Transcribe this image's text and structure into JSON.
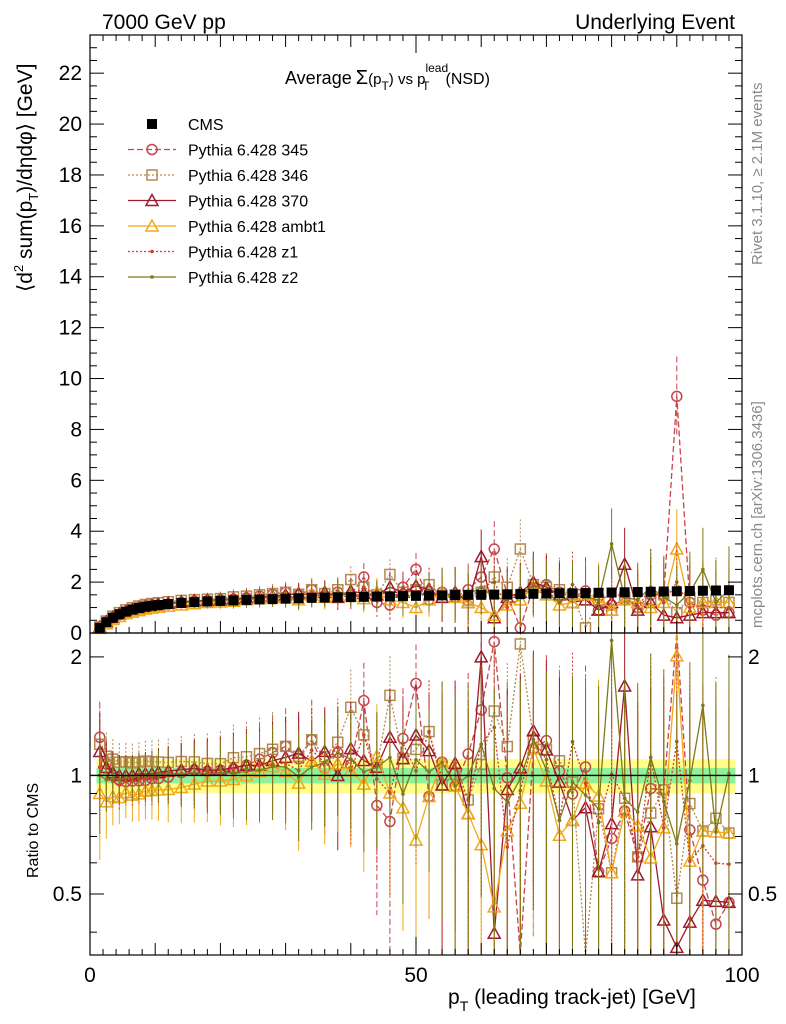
{
  "header": {
    "left": "7000 GeV pp",
    "right": "Underlying Event"
  },
  "side_labels": {
    "rivet": "Rivet 3.1.10, ≥ 2.1M events",
    "mcplots": "mcplots.cern.ch [arXiv:1306.3436]"
  },
  "title": {
    "prefix": "Average",
    "sigma": "Σ",
    "open": "(p",
    "sub1": "T",
    "mid": ") vs p",
    "sup2": "lead",
    "sub2": "T",
    "suffix": "(NSD)"
  },
  "y_axis_main": {
    "pre": "⟨d",
    "sup": "2",
    "mid": " sum(p",
    "sub": "T",
    "post": ")/dηdφ⟩ [GeV]"
  },
  "y_axis_ratio": "Ratio to CMS",
  "x_axis": {
    "pre": "p",
    "sub": "T",
    "post": " (leading track-jet) [GeV]"
  },
  "legend": [
    {
      "label": "CMS",
      "color": "#000000",
      "marker": "filled-square",
      "dash": "none"
    },
    {
      "label": "Pythia 6.428 345",
      "color": "#c8434e",
      "marker": "circle",
      "dash": "dashed"
    },
    {
      "label": "Pythia 6.428 346",
      "color": "#b38a50",
      "marker": "square",
      "dash": "dotted"
    },
    {
      "label": "Pythia 6.428 370",
      "color": "#9e1a2a",
      "marker": "triangle",
      "dash": "solid"
    },
    {
      "label": "Pythia 6.428 ambt1",
      "color": "#f2a818",
      "marker": "triangle",
      "dash": "solid"
    },
    {
      "label": "Pythia 6.428 z1",
      "color": "#d23c2c",
      "marker": "dot",
      "dash": "dotted"
    },
    {
      "label": "Pythia 6.428 z2",
      "color": "#7f7a18",
      "marker": "dot",
      "dash": "solid"
    }
  ],
  "chart_data": {
    "type": "line",
    "x": [
      1.5,
      2.5,
      3.5,
      4.5,
      5.5,
      6.5,
      7.5,
      8.5,
      9.5,
      10.5,
      12,
      14,
      16,
      18,
      20,
      22,
      24,
      26,
      28,
      30,
      32,
      34,
      36,
      38,
      40,
      42,
      44,
      46,
      48,
      50,
      52,
      54,
      56,
      58,
      60,
      62,
      64,
      66,
      68,
      70,
      72,
      74,
      76,
      78,
      80,
      82,
      84,
      86,
      88,
      90,
      92,
      94,
      96,
      98
    ],
    "xlim": [
      0,
      100
    ],
    "main_ylim": [
      0,
      23.5
    ],
    "ratio_ylim": [
      0.35,
      2.3
    ],
    "main_yticks": [
      0,
      2,
      4,
      6,
      8,
      10,
      12,
      14,
      16,
      18,
      20,
      22
    ],
    "ratio_yticks": [
      0.5,
      1,
      2
    ],
    "xticks": [
      0,
      50,
      100
    ],
    "series": [
      {
        "name": "CMS",
        "values": [
          0.2,
          0.42,
          0.6,
          0.74,
          0.84,
          0.92,
          0.98,
          1.03,
          1.07,
          1.1,
          1.14,
          1.18,
          1.21,
          1.24,
          1.26,
          1.28,
          1.3,
          1.32,
          1.33,
          1.35,
          1.36,
          1.38,
          1.39,
          1.4,
          1.41,
          1.42,
          1.43,
          1.44,
          1.45,
          1.46,
          1.47,
          1.48,
          1.49,
          1.5,
          1.5,
          1.51,
          1.52,
          1.53,
          1.54,
          1.55,
          1.56,
          1.56,
          1.57,
          1.58,
          1.59,
          1.6,
          1.61,
          1.62,
          1.63,
          1.64,
          1.65,
          1.66,
          1.67,
          1.68
        ]
      },
      {
        "name": "Pythia 6.428 345",
        "values": [
          0.25,
          0.45,
          0.6,
          0.72,
          0.81,
          0.89,
          0.95,
          1.0,
          1.05,
          1.08,
          1.13,
          1.2,
          1.25,
          1.27,
          1.3,
          1.33,
          1.38,
          1.45,
          1.52,
          1.6,
          1.5,
          1.7,
          1.45,
          1.6,
          1.5,
          2.2,
          1.2,
          1.1,
          1.8,
          2.5,
          1.3,
          1.6,
          1.4,
          1.7,
          2.2,
          3.3,
          1.5,
          0.2,
          1.8,
          1.9,
          1.6,
          1.4,
          1.65,
          0.9,
          1.1,
          1.3,
          1.0,
          1.5,
          1.5,
          9.3,
          1.2,
          0.9,
          0.7,
          0.8
        ]
      },
      {
        "name": "Pythia 6.428 346",
        "values": [
          0.24,
          0.47,
          0.66,
          0.8,
          0.91,
          0.99,
          1.06,
          1.12,
          1.16,
          1.19,
          1.23,
          1.28,
          1.31,
          1.33,
          1.35,
          1.42,
          1.45,
          1.5,
          1.55,
          1.6,
          1.52,
          1.7,
          1.55,
          1.7,
          2.1,
          1.8,
          1.5,
          2.3,
          1.6,
          1.7,
          1.9,
          1.4,
          1.5,
          1.3,
          1.6,
          2.2,
          1.8,
          3.3,
          1.9,
          1.8,
          1.7,
          1.5,
          0.2,
          1.3,
          0.9,
          1.4,
          1.0,
          1.3,
          1.5,
          0.8,
          1.4,
          1.2,
          1.3,
          1.2
        ]
      },
      {
        "name": "Pythia 6.428 370",
        "values": [
          0.23,
          0.44,
          0.61,
          0.74,
          0.84,
          0.92,
          0.99,
          1.04,
          1.08,
          1.12,
          1.17,
          1.22,
          1.26,
          1.28,
          1.3,
          1.34,
          1.38,
          1.4,
          1.45,
          1.5,
          1.55,
          1.5,
          1.6,
          1.4,
          1.65,
          1.55,
          1.5,
          1.8,
          1.6,
          1.85,
          1.7,
          1.4,
          1.6,
          1.2,
          3.0,
          0.6,
          1.4,
          1.6,
          2.0,
          1.8,
          1.5,
          1.2,
          1.3,
          0.9,
          1.2,
          2.7,
          0.9,
          1.2,
          0.7,
          0.6,
          0.7,
          0.8,
          0.8,
          0.8
        ]
      },
      {
        "name": "Pythia 6.428 ambt1",
        "values": [
          0.18,
          0.36,
          0.53,
          0.65,
          0.76,
          0.82,
          0.88,
          0.94,
          0.98,
          1.01,
          1.05,
          1.1,
          1.15,
          1.2,
          1.22,
          1.25,
          1.3,
          1.35,
          1.4,
          1.38,
          1.3,
          1.5,
          1.4,
          1.5,
          1.45,
          1.35,
          1.6,
          1.3,
          1.2,
          1.0,
          1.3,
          1.6,
          1.4,
          1.2,
          1.0,
          0.7,
          1.1,
          1.3,
          1.8,
          1.5,
          1.1,
          1.2,
          1.5,
          1.4,
          0.9,
          1.3,
          1.2,
          1.0,
          1.2,
          3.3,
          1.0,
          1.2,
          1.2,
          1.2
        ]
      },
      {
        "name": "Pythia 6.428 z1",
        "values": [
          0.21,
          0.41,
          0.58,
          0.7,
          0.81,
          0.89,
          0.96,
          1.01,
          1.05,
          1.09,
          1.14,
          1.19,
          1.23,
          1.26,
          1.28,
          1.32,
          1.36,
          1.4,
          1.42,
          1.45,
          1.4,
          1.6,
          1.5,
          1.65,
          1.45,
          1.8,
          1.4,
          1.3,
          1.75,
          1.5,
          1.9,
          1.45,
          1.6,
          1.3,
          1.8,
          2.0,
          1.0,
          1.4,
          1.9,
          1.7,
          1.2,
          1.9,
          1.5,
          1.2,
          1.6,
          1.4,
          1.0,
          1.8,
          1.2,
          2.0,
          1.0,
          1.1,
          1.0,
          1.0
        ]
      },
      {
        "name": "Pythia 6.428 z2",
        "values": [
          0.2,
          0.41,
          0.59,
          0.72,
          0.83,
          0.91,
          0.98,
          1.03,
          1.07,
          1.11,
          1.15,
          1.19,
          1.23,
          1.25,
          1.28,
          1.3,
          1.33,
          1.36,
          1.4,
          1.42,
          1.35,
          1.45,
          1.5,
          1.6,
          1.55,
          1.45,
          1.5,
          1.6,
          1.3,
          1.6,
          1.5,
          1.6,
          1.4,
          1.5,
          1.8,
          1.4,
          1.3,
          1.5,
          1.9,
          1.6,
          1.2,
          1.5,
          1.4,
          1.3,
          3.5,
          1.4,
          1.3,
          1.8,
          1.4,
          1.1,
          1.6,
          2.5,
          1.2,
          1.7
        ]
      }
    ]
  }
}
